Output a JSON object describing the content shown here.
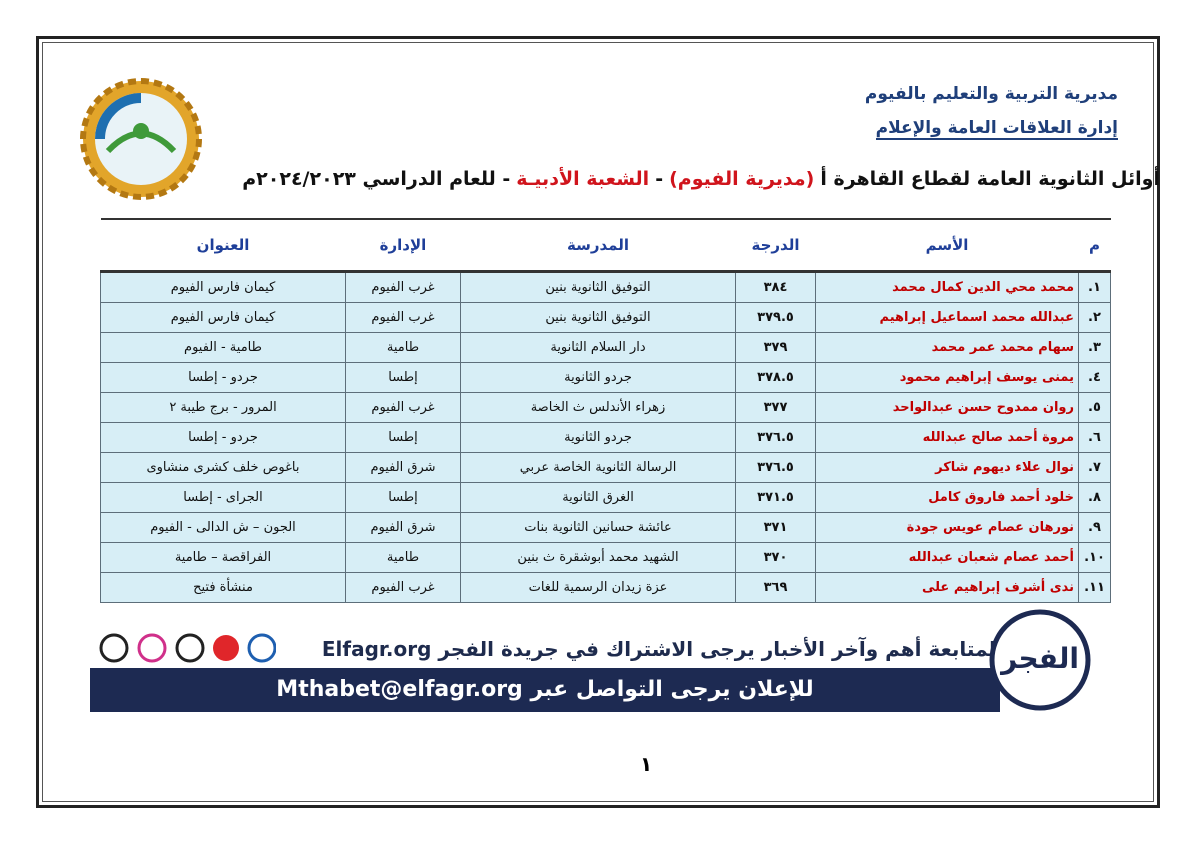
{
  "header": {
    "directorate": "مديرية التربية والتعليم بالفيوم",
    "department": "إدارة العلاقات العامة والإعلام",
    "title_parts": [
      "أوائل الثانوية العامة لقطاع القاهرة أ",
      "(مديرية الفيوم)",
      "-",
      "الشعبة الأدبيـة",
      "- للعام الدراسي ٢٠٢٤/٢٠٢٣م"
    ]
  },
  "table": {
    "columns": [
      "م",
      "الأسم",
      "الدرجة",
      "المدرسة",
      "الإدارة",
      "العنوان"
    ],
    "rows": [
      [
        "١.",
        "محمد محي الدين كمال محمد",
        "٣٨٤",
        "التوفيق الثانوية بنين",
        "غرب الفيوم",
        "كيمان فارس الفيوم"
      ],
      [
        "٢.",
        "عبدالله محمد اسماعيل إبراهيم",
        "٣٧٩.٥",
        "التوفيق الثانوية بنين",
        "غرب الفيوم",
        "كيمان فارس الفيوم"
      ],
      [
        "٣.",
        "سهام محمد عمر محمد",
        "٣٧٩",
        "دار السلام الثانوية",
        "طامية",
        "طامية - الفيوم"
      ],
      [
        "٤.",
        "يمنى يوسف إبراهيم محمود",
        "٣٧٨.٥",
        "جردو الثانوية",
        "إطسا",
        "جردو - إطسا"
      ],
      [
        "٥.",
        "روان ممدوح حسن عبدالواحد",
        "٣٧٧",
        "زهراء الأندلس ث الخاصة",
        "غرب الفيوم",
        "المرور - برج طيبة ٢"
      ],
      [
        "٦.",
        "مروة أحمد صالح عبدالله",
        "٣٧٦.٥",
        "جردو الثانوية",
        "إطسا",
        "جردو - إطسا"
      ],
      [
        "٧.",
        "نوال علاء ديهوم شاكر",
        "٣٧٦.٥",
        "الرسالة الثانوية الخاصة عربي",
        "شرق الفيوم",
        "باغوص خلف كشرى منشاوى"
      ],
      [
        "٨.",
        "خلود أحمد فاروق كامل",
        "٣٧١.٥",
        "الغرق الثانوية",
        "إطسا",
        "الجراى - إطسا"
      ],
      [
        "٩.",
        "نورهان عصام عويس جودة",
        "٣٧١",
        "عائشة حسانين الثانوية بنات",
        "شرق الفيوم",
        "الجون – ش الدالى - الفيوم"
      ],
      [
        "١٠.",
        "أحمد عصام شعبان عبدالله",
        "٣٧٠",
        "الشهيد محمد أبوشقرة ث بنين",
        "طامية",
        "الفراقصة – طامية"
      ],
      [
        "١١.",
        "ندى أشرف إبراهيم على",
        "٣٦٩",
        "عزة زيدان الرسمية للغات",
        "غرب الفيوم",
        "منشأة فتيح"
      ]
    ]
  },
  "footer": {
    "follow": "لمتابعة أهم وآخر الأخبار يرجى الاشتراك في جريدة الفجر Elfagr.org",
    "contact": "للإعلان يرجى التواصل عبر Mthabet@elfagr.org",
    "logo": "الفجر",
    "page_number": "١"
  }
}
